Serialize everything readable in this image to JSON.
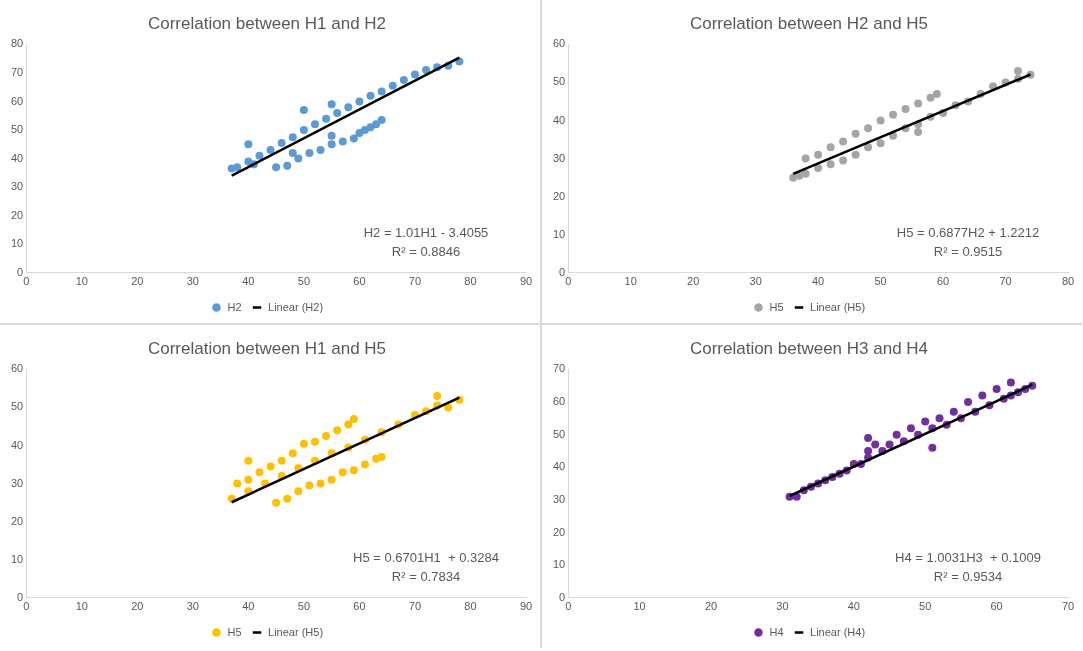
{
  "chart_data": [
    {
      "type": "scatter",
      "title": "Correlation between H1 and H2",
      "xlim": [
        0,
        90
      ],
      "xticks": [
        0,
        10,
        20,
        30,
        40,
        50,
        60,
        70,
        80,
        90
      ],
      "ylim": [
        0,
        80
      ],
      "yticks": [
        0,
        10,
        20,
        30,
        40,
        50,
        60,
        70,
        80
      ],
      "grid": false,
      "legend": "bottom",
      "annotations": [
        "H2 = 1.01H1 - 3.4055",
        "R² = 0.8846"
      ],
      "series": [
        {
          "name": "H2",
          "type": "scatter",
          "marker": "circle",
          "color": "#5b9bd5",
          "x": [
            37,
            38,
            40,
            42,
            44,
            46,
            48,
            50,
            52,
            54,
            56,
            58,
            60,
            62,
            64,
            66,
            68,
            70,
            72,
            74,
            76,
            78,
            45,
            47,
            48,
            49,
            51,
            53,
            55,
            55,
            57,
            59,
            60,
            61,
            62,
            63,
            64,
            40,
            50,
            55,
            41
          ],
          "values": [
            36.5,
            37,
            39,
            41,
            43,
            45.5,
            47.5,
            50,
            52,
            54,
            56,
            58,
            60,
            62,
            63.5,
            65.5,
            67.5,
            69.5,
            71,
            72,
            72.5,
            74,
            37,
            37.5,
            42,
            40,
            42,
            43,
            45,
            48,
            46,
            47,
            49,
            50,
            51,
            52,
            53.5,
            45,
            57,
            59,
            38
          ]
        },
        {
          "name": "Linear (H2)",
          "type": "line",
          "marker": "none",
          "color": "#000000",
          "x": [
            37,
            78
          ],
          "values": [
            34.0,
            75.4
          ]
        }
      ]
    },
    {
      "type": "scatter",
      "title": "Correlation between H2 and H5",
      "xlim": [
        0,
        80
      ],
      "xticks": [
        0,
        10,
        20,
        30,
        40,
        50,
        60,
        70,
        80
      ],
      "ylim": [
        0,
        60
      ],
      "yticks": [
        0,
        10,
        20,
        30,
        40,
        50,
        60
      ],
      "grid": false,
      "legend": "bottom",
      "annotations": [
        "H5 = 0.6877H2 + 1.2212",
        "R² = 0.9515"
      ],
      "series": [
        {
          "name": "H5",
          "type": "scatter",
          "marker": "circle",
          "color": "#a5a5a5",
          "x": [
            36,
            37,
            38,
            40,
            42,
            44,
            46,
            48,
            50,
            52,
            54,
            56,
            56,
            58,
            60,
            62,
            64,
            66,
            68,
            70,
            72,
            72,
            74,
            38,
            40,
            42,
            44,
            46,
            48,
            50,
            52,
            54,
            56,
            58,
            59
          ],
          "values": [
            25,
            25.5,
            26,
            27.5,
            28.5,
            29.5,
            31,
            33,
            34,
            36,
            38,
            39,
            37,
            41,
            42,
            44,
            45,
            47,
            49,
            50,
            51,
            53,
            52,
            30,
            31,
            33,
            34.5,
            36.5,
            38,
            40,
            41.5,
            43,
            44.5,
            46,
            47
          ]
        },
        {
          "name": "Linear (H5)",
          "type": "line",
          "marker": "none",
          "color": "#000000",
          "x": [
            36,
            74
          ],
          "values": [
            26.0,
            52.1
          ]
        }
      ]
    },
    {
      "type": "scatter",
      "title": "Correlation between H1 and H5",
      "xlim": [
        0,
        90
      ],
      "xticks": [
        0,
        10,
        20,
        30,
        40,
        50,
        60,
        70,
        80,
        90
      ],
      "ylim": [
        0,
        60
      ],
      "yticks": [
        0,
        10,
        20,
        30,
        40,
        50,
        60
      ],
      "grid": false,
      "legend": "bottom",
      "annotations": [
        "H5 = 0.6701H1  + 0.3284",
        "R² = 0.7834"
      ],
      "series": [
        {
          "name": "H5",
          "type": "scatter",
          "marker": "circle",
          "color": "#ffc000",
          "x": [
            38,
            40,
            42,
            44,
            46,
            48,
            50,
            52,
            54,
            56,
            58,
            59,
            37,
            40,
            43,
            46,
            49,
            52,
            55,
            58,
            61,
            64,
            67,
            70,
            72,
            74,
            76,
            78,
            45,
            47,
            49,
            51,
            53,
            55,
            57,
            59,
            61,
            63,
            64,
            40,
            74
          ],
          "values": [
            30,
            31,
            33,
            34.5,
            36,
            38,
            40.5,
            41,
            42.5,
            44,
            45.5,
            47,
            26,
            28,
            30,
            32,
            34,
            36,
            38,
            39.5,
            41.5,
            43.5,
            45.5,
            48,
            49,
            50.5,
            50,
            52,
            25,
            26,
            28,
            29.5,
            30,
            31,
            33,
            33.5,
            35,
            36.5,
            37,
            36,
            53
          ]
        },
        {
          "name": "Linear (H5)",
          "type": "line",
          "marker": "none",
          "color": "#000000",
          "x": [
            37,
            78
          ],
          "values": [
            25.1,
            52.6
          ]
        }
      ]
    },
    {
      "type": "scatter",
      "title": "Correlation between H3 and H4",
      "xlim": [
        0,
        70
      ],
      "xticks": [
        0,
        10,
        20,
        30,
        40,
        50,
        60,
        70
      ],
      "ylim": [
        0,
        70
      ],
      "yticks": [
        0,
        10,
        20,
        30,
        40,
        50,
        60,
        70
      ],
      "grid": false,
      "legend": "bottom",
      "annotations": [
        "H4 = 1.0031H3  + 0.1009",
        "R² = 0.9534"
      ],
      "series": [
        {
          "name": "H4",
          "type": "scatter",
          "marker": "circle",
          "color": "#7030a0",
          "x": [
            31,
            32,
            33,
            34,
            35,
            36,
            37,
            38,
            39,
            40,
            41,
            42,
            42,
            42,
            43,
            44,
            45,
            46,
            47,
            48,
            49,
            50,
            51,
            51,
            52,
            53,
            54,
            55,
            56,
            57,
            58,
            59,
            60,
            61,
            62,
            62,
            63,
            64,
            65
          ],
          "values": [
            31,
            31,
            33,
            34,
            35,
            36,
            37,
            38,
            39,
            41,
            41,
            43,
            49,
            45,
            47,
            45,
            47,
            50,
            48,
            52,
            50,
            54,
            46,
            52,
            55,
            53,
            57,
            55,
            60,
            57,
            62,
            59,
            64,
            61,
            66,
            62,
            63,
            64,
            65
          ]
        },
        {
          "name": "Linear (H4)",
          "type": "line",
          "marker": "none",
          "color": "#000000",
          "x": [
            31,
            65
          ],
          "values": [
            31.2,
            65.3
          ]
        }
      ]
    }
  ]
}
